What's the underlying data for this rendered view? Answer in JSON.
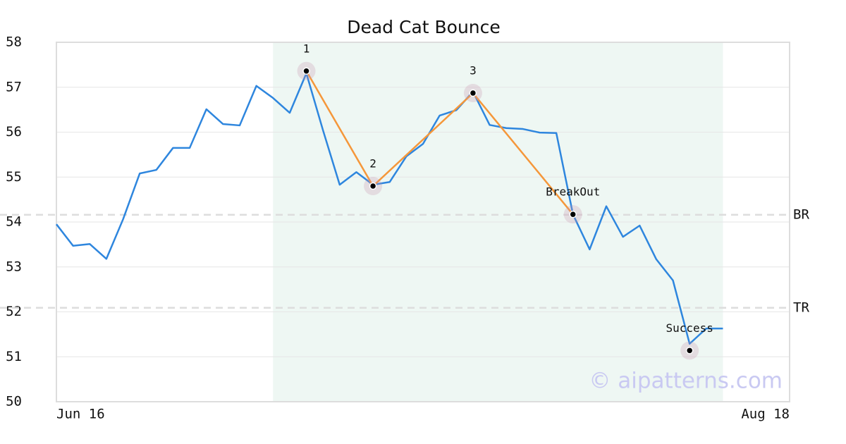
{
  "chart_data": {
    "type": "line",
    "title": "Dead Cat Bounce",
    "x": [
      0,
      1,
      2,
      3,
      4,
      5,
      6,
      7,
      8,
      9,
      10,
      11,
      12,
      13,
      14,
      15,
      16,
      17,
      18,
      19,
      20,
      21,
      22,
      23,
      24,
      25,
      26,
      27,
      28,
      29,
      30,
      31,
      32,
      33,
      34,
      35,
      36,
      37,
      38,
      39,
      40
    ],
    "xlim": [
      0,
      44
    ],
    "xticks": [
      {
        "value": 0,
        "label": "Jun 16"
      },
      {
        "value": 44,
        "label": "Aug 18"
      }
    ],
    "ylim": [
      50,
      58
    ],
    "yticks": [
      50,
      51,
      52,
      53,
      54,
      55,
      56,
      57,
      58
    ],
    "grid": true,
    "series": [
      {
        "color": "#2e86de",
        "values": [
          53.95,
          53.47,
          53.51,
          53.18,
          54.06,
          55.08,
          55.16,
          55.65,
          55.65,
          56.51,
          56.18,
          56.15,
          57.03,
          56.76,
          56.43,
          57.31,
          56.04,
          54.83,
          55.11,
          54.83,
          54.89,
          55.46,
          55.74,
          56.37,
          56.49,
          56.9,
          56.16,
          56.09,
          56.07,
          55.99,
          55.98,
          54.17,
          53.39,
          54.35,
          53.67,
          53.92,
          53.17,
          52.7,
          51.29,
          51.63,
          51.63
        ]
      }
    ],
    "shade": {
      "x": [
        13,
        40
      ],
      "color": "#eef7f3"
    },
    "pattern": {
      "color": "#f5973a",
      "x": [
        15,
        19,
        25,
        31
      ],
      "y": [
        57.36,
        54.8,
        56.87,
        54.17
      ]
    },
    "points": [
      {
        "label": "1",
        "x": 15,
        "y": 57.36
      },
      {
        "label": "2",
        "x": 19,
        "y": 54.8
      },
      {
        "label": "3",
        "x": 25,
        "y": 56.87
      },
      {
        "label": "BreakOut",
        "x": 31,
        "y": 54.17
      },
      {
        "label": "Success",
        "x": 38,
        "y": 51.14
      }
    ],
    "levels": [
      {
        "label": "BR",
        "value": 54.16
      },
      {
        "label": "TR",
        "value": 52.09
      }
    ],
    "watermark": "© aipatterns.com"
  }
}
